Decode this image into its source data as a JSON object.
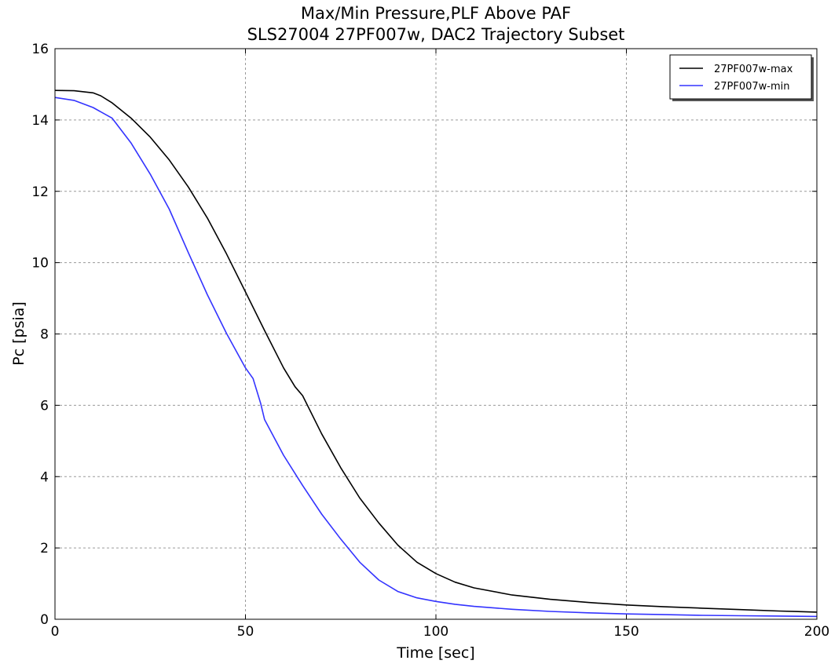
{
  "chart_data": {
    "type": "line",
    "title": "Max/Min Pressure,PLF Above PAF",
    "subtitle": "SLS27004 27PF007w, DAC2 Trajectory Subset",
    "xlabel": "Time [sec]",
    "ylabel": "Pc [psia]",
    "xlim": [
      0,
      200
    ],
    "ylim": [
      0,
      16
    ],
    "xticks": [
      0,
      50,
      100,
      150,
      200
    ],
    "yticks": [
      0,
      2,
      4,
      6,
      8,
      10,
      12,
      14,
      16
    ],
    "grid": true,
    "legend_position": "top-right",
    "series": [
      {
        "name": "27PF007w-max",
        "color": "#000000",
        "x": [
          0,
          5,
          10,
          12,
          15,
          20,
          25,
          30,
          35,
          40,
          45,
          50,
          55,
          60,
          63,
          65,
          70,
          75,
          80,
          85,
          90,
          95,
          100,
          105,
          110,
          120,
          130,
          140,
          150,
          160,
          170,
          180,
          190,
          200
        ],
        "y": [
          14.83,
          14.82,
          14.76,
          14.68,
          14.48,
          14.05,
          13.52,
          12.88,
          12.12,
          11.25,
          10.25,
          9.18,
          8.1,
          7.05,
          6.52,
          6.27,
          5.2,
          4.25,
          3.4,
          2.7,
          2.08,
          1.6,
          1.28,
          1.04,
          0.88,
          0.68,
          0.56,
          0.47,
          0.4,
          0.35,
          0.31,
          0.27,
          0.23,
          0.2
        ]
      },
      {
        "name": "27PF007w-min",
        "color": "#3333ff",
        "x": [
          0,
          5,
          10,
          15,
          20,
          25,
          30,
          35,
          40,
          45,
          50,
          52,
          54,
          55,
          60,
          65,
          70,
          75,
          80,
          85,
          90,
          95,
          100,
          105,
          110,
          120,
          130,
          140,
          150,
          160,
          170,
          180,
          190,
          200
        ],
        "y": [
          14.63,
          14.55,
          14.35,
          14.05,
          13.35,
          12.48,
          11.5,
          10.28,
          9.1,
          8.02,
          7.05,
          6.75,
          6.05,
          5.6,
          4.6,
          3.75,
          2.95,
          2.25,
          1.6,
          1.1,
          0.78,
          0.6,
          0.5,
          0.42,
          0.36,
          0.28,
          0.22,
          0.18,
          0.15,
          0.13,
          0.11,
          0.1,
          0.09,
          0.08
        ]
      }
    ]
  }
}
